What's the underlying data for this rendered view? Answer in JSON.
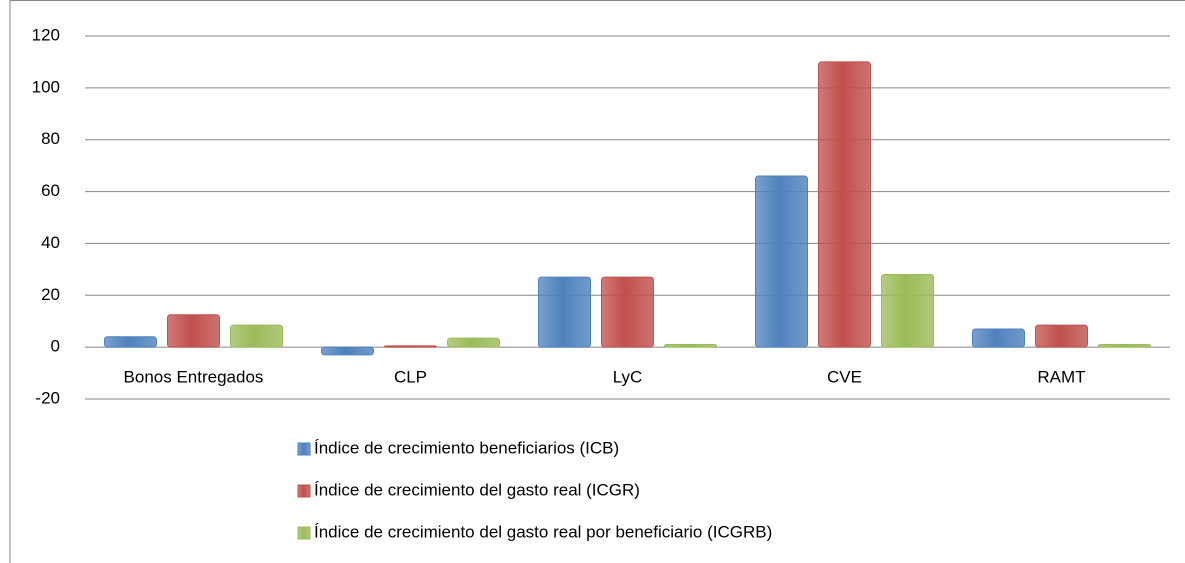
{
  "chart_data": {
    "type": "bar",
    "categories": [
      "Bonos Entregados",
      "CLP",
      "LyC",
      "CVE",
      "RAMT"
    ],
    "series": [
      {
        "name": "Índice de crecimiento beneficiarios (ICB)",
        "color": "#4f81bd",
        "values": [
          4,
          -3,
          27,
          66,
          7
        ]
      },
      {
        "name": "Índice de crecimiento del gasto real (ICGR)",
        "color": "#c0504d",
        "values": [
          12.5,
          0.5,
          27,
          110,
          8.5
        ]
      },
      {
        "name": "Índice de crecimiento del gasto real por beneficiario (ICGRB)",
        "color": "#9bbb59",
        "values": [
          8.5,
          3.5,
          1,
          28,
          1
        ]
      }
    ],
    "ylim": [
      -20,
      120
    ],
    "yticks": [
      -20,
      0,
      20,
      40,
      60,
      80,
      100,
      120
    ],
    "grid": true,
    "legend": "bottom"
  }
}
